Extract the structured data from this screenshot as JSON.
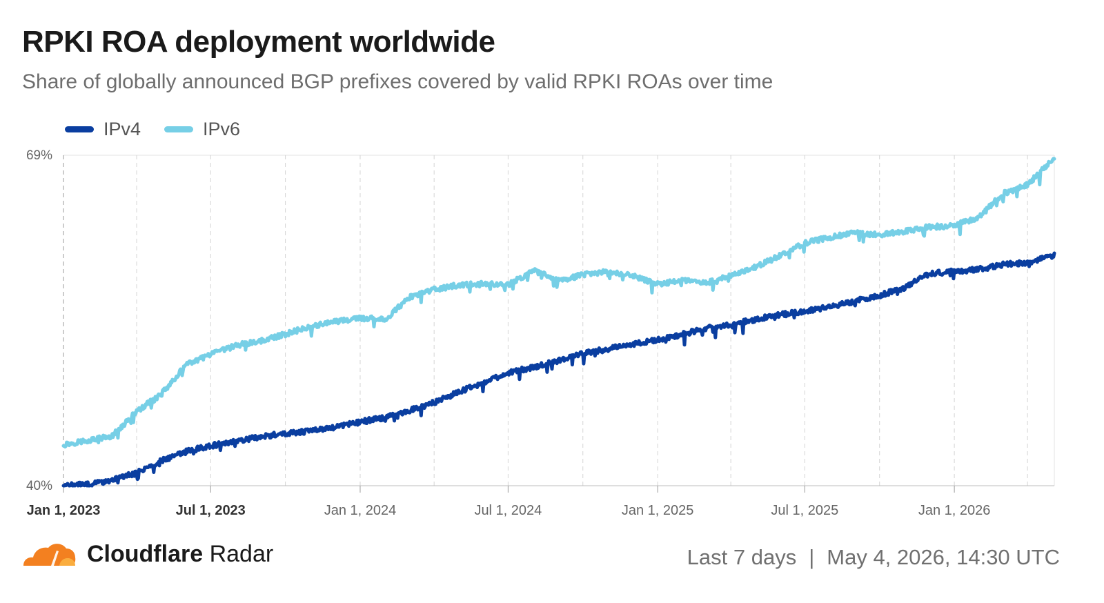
{
  "header": {
    "title": "RPKI ROA deployment worldwide",
    "subtitle": "Share of globally announced BGP prefixes covered by valid RPKI ROAs over time"
  },
  "footer": {
    "brand_bold": "Cloudflare",
    "brand_regular": "Radar",
    "range": "Last 7 days",
    "separator": "|",
    "timestamp": "May 4, 2026, 14:30 UTC",
    "logo_icon": "cloudflare-cloud-icon"
  },
  "chart_data": {
    "type": "line",
    "title": "RPKI ROA deployment worldwide",
    "ylim": [
      40,
      69
    ],
    "y_ticks": [
      "40%",
      "69%"
    ],
    "xlim": [
      "2023-01-01",
      "2026-05-04"
    ],
    "x_ticks": [
      {
        "date": "2023-01-01",
        "label": "Jan 1, 2023",
        "bold": true
      },
      {
        "date": "2023-07-01",
        "label": "Jul 1, 2023",
        "bold": true
      },
      {
        "date": "2024-01-01",
        "label": "Jan 1, 2024",
        "bold": false
      },
      {
        "date": "2024-07-01",
        "label": "Jul 1, 2024",
        "bold": false
      },
      {
        "date": "2025-01-01",
        "label": "Jan 1, 2025",
        "bold": false
      },
      {
        "date": "2025-07-01",
        "label": "Jul 1, 2025",
        "bold": false
      },
      {
        "date": "2026-01-01",
        "label": "Jan 1, 2026",
        "bold": false
      }
    ],
    "minor_gridlines": [
      "2023-04-01",
      "2023-10-01",
      "2024-04-01",
      "2024-10-01",
      "2025-04-01",
      "2025-10-01",
      "2026-04-01"
    ],
    "grid": "vertical-dashed",
    "legend_position": "top-left",
    "series": [
      {
        "name": "IPv4",
        "color": "#0a3ea0",
        "points": [
          [
            "2023-01-01",
            40.0
          ],
          [
            "2023-02-01",
            40.1
          ],
          [
            "2023-03-01",
            40.5
          ],
          [
            "2023-04-01",
            41.1
          ],
          [
            "2023-05-01",
            42.2
          ],
          [
            "2023-06-01",
            43.0
          ],
          [
            "2023-07-01",
            43.5
          ],
          [
            "2023-08-01",
            43.9
          ],
          [
            "2023-09-01",
            44.3
          ],
          [
            "2023-10-01",
            44.6
          ],
          [
            "2023-11-01",
            44.8
          ],
          [
            "2023-12-01",
            45.1
          ],
          [
            "2024-01-01",
            45.6
          ],
          [
            "2024-02-01",
            46.0
          ],
          [
            "2024-03-01",
            46.6
          ],
          [
            "2024-04-01",
            47.3
          ],
          [
            "2024-05-01",
            48.2
          ],
          [
            "2024-06-01",
            49.1
          ],
          [
            "2024-07-01",
            49.9
          ],
          [
            "2024-08-01",
            50.4
          ],
          [
            "2024-09-01",
            51.0
          ],
          [
            "2024-10-01",
            51.6
          ],
          [
            "2024-11-01",
            52.0
          ],
          [
            "2024-12-01",
            52.4
          ],
          [
            "2025-01-01",
            52.8
          ],
          [
            "2025-02-01",
            53.3
          ],
          [
            "2025-03-01",
            53.8
          ],
          [
            "2025-04-01",
            54.1
          ],
          [
            "2025-05-01",
            54.6
          ],
          [
            "2025-06-01",
            55.0
          ],
          [
            "2025-07-01",
            55.3
          ],
          [
            "2025-08-01",
            55.7
          ],
          [
            "2025-09-01",
            56.2
          ],
          [
            "2025-10-01",
            56.7
          ],
          [
            "2025-11-01",
            57.4
          ],
          [
            "2025-12-01",
            58.6
          ],
          [
            "2026-01-01",
            58.8
          ],
          [
            "2026-02-01",
            59.0
          ],
          [
            "2026-03-01",
            59.4
          ],
          [
            "2026-04-01",
            59.6
          ],
          [
            "2026-05-04",
            60.2
          ]
        ]
      },
      {
        "name": "IPv6",
        "color": "#76cfe6",
        "points": [
          [
            "2023-01-01",
            43.6
          ],
          [
            "2023-02-01",
            44.0
          ],
          [
            "2023-03-01",
            44.3
          ],
          [
            "2023-04-01",
            46.5
          ],
          [
            "2023-05-01",
            48.0
          ],
          [
            "2023-06-01",
            50.6
          ],
          [
            "2023-07-01",
            51.5
          ],
          [
            "2023-08-01",
            52.3
          ],
          [
            "2023-09-01",
            52.7
          ],
          [
            "2023-10-01",
            53.3
          ],
          [
            "2023-11-01",
            54.0
          ],
          [
            "2023-12-01",
            54.4
          ],
          [
            "2024-01-01",
            54.7
          ],
          [
            "2024-02-01",
            54.6
          ],
          [
            "2024-03-01",
            56.5
          ],
          [
            "2024-04-01",
            57.2
          ],
          [
            "2024-05-01",
            57.6
          ],
          [
            "2024-06-01",
            57.7
          ],
          [
            "2024-07-01",
            57.6
          ],
          [
            "2024-08-01",
            58.9
          ],
          [
            "2024-09-01",
            58.0
          ],
          [
            "2024-10-01",
            58.5
          ],
          [
            "2024-11-01",
            58.8
          ],
          [
            "2024-12-01",
            58.4
          ],
          [
            "2025-01-01",
            57.7
          ],
          [
            "2025-02-01",
            58.0
          ],
          [
            "2025-03-01",
            57.8
          ],
          [
            "2025-04-01",
            58.4
          ],
          [
            "2025-05-01",
            59.2
          ],
          [
            "2025-06-01",
            60.2
          ],
          [
            "2025-07-01",
            61.3
          ],
          [
            "2025-08-01",
            61.8
          ],
          [
            "2025-09-01",
            62.2
          ],
          [
            "2025-10-01",
            62.0
          ],
          [
            "2025-11-01",
            62.3
          ],
          [
            "2025-12-01",
            62.7
          ],
          [
            "2026-01-01",
            62.8
          ],
          [
            "2026-02-01",
            63.6
          ],
          [
            "2026-03-01",
            65.6
          ],
          [
            "2026-04-01",
            66.4
          ],
          [
            "2026-05-04",
            68.8
          ]
        ]
      }
    ]
  }
}
